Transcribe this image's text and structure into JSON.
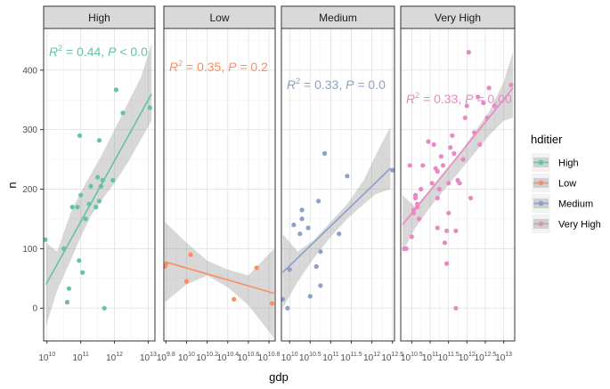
{
  "chart_data": {
    "type": "scatter",
    "xlabel": "gdp",
    "ylabel": "n",
    "legend": {
      "title": "hditier",
      "placement": "right",
      "entries": [
        {
          "name": "High",
          "color": "#66C2A5"
        },
        {
          "name": "Low",
          "color": "#FC8D62"
        },
        {
          "name": "Medium",
          "color": "#8DA0CB"
        },
        {
          "name": "Very High",
          "color": "#E78AC3"
        }
      ]
    },
    "ylim": [
      -55,
      470
    ],
    "y_ticks": [
      0,
      100,
      200,
      300,
      400
    ],
    "facets": [
      {
        "name": "High",
        "color": "#66C2A5",
        "xlim": [
          9.9,
          13.2
        ],
        "x_ticks": [
          10,
          11,
          12,
          13
        ],
        "annotation": {
          "r2": "0.44",
          "p": "< 0.0"
        },
        "fit": {
          "x": [
            9.97,
            13.1
          ],
          "y": [
            40,
            360
          ]
        },
        "band": [
          [
            9.97,
            -30
          ],
          [
            10.3,
            30
          ],
          [
            10.7,
            80
          ],
          [
            11.0,
            120
          ],
          [
            11.3,
            155
          ],
          [
            11.6,
            180
          ],
          [
            12.0,
            210
          ],
          [
            12.4,
            245
          ],
          [
            12.8,
            285
          ],
          [
            13.1,
            315
          ],
          [
            13.1,
            445
          ],
          [
            12.8,
            390
          ],
          [
            12.4,
            345
          ],
          [
            12.0,
            300
          ],
          [
            11.6,
            255
          ],
          [
            11.3,
            225
          ],
          [
            11.0,
            195
          ],
          [
            10.7,
            160
          ],
          [
            10.3,
            95
          ],
          [
            9.97,
            110
          ]
        ],
        "points": [
          [
            9.95,
            115
          ],
          [
            10.5,
            100
          ],
          [
            10.6,
            10
          ],
          [
            10.65,
            33
          ],
          [
            10.75,
            170
          ],
          [
            10.9,
            170
          ],
          [
            10.95,
            80
          ],
          [
            10.97,
            290
          ],
          [
            11.0,
            190
          ],
          [
            11.05,
            60
          ],
          [
            11.15,
            150
          ],
          [
            11.25,
            175
          ],
          [
            11.3,
            205
          ],
          [
            11.45,
            170
          ],
          [
            11.5,
            220
          ],
          [
            11.55,
            180
          ],
          [
            11.55,
            282
          ],
          [
            11.6,
            205
          ],
          [
            11.65,
            215
          ],
          [
            11.7,
            0
          ],
          [
            11.95,
            215
          ],
          [
            12.05,
            367
          ],
          [
            12.25,
            328
          ],
          [
            13.05,
            337
          ]
        ]
      },
      {
        "name": "Low",
        "color": "#FC8D62",
        "xlim": [
          9.78,
          10.86
        ],
        "x_ticks": [
          9.8,
          10,
          10.2,
          10.4,
          10.6,
          10.8
        ],
        "x_tick_labels": [
          "9.8",
          "10",
          "10.2",
          "10.4",
          "10.6",
          "10.8"
        ],
        "annotation": {
          "r2": "0.35",
          "p": "0.2"
        },
        "fit": {
          "x": [
            9.79,
            10.85
          ],
          "y": [
            78,
            25
          ]
        },
        "band": [
          [
            9.79,
            10
          ],
          [
            10.0,
            40
          ],
          [
            10.2,
            55
          ],
          [
            10.4,
            35
          ],
          [
            10.6,
            5
          ],
          [
            10.85,
            -50
          ],
          [
            10.85,
            100
          ],
          [
            10.6,
            55
          ],
          [
            10.4,
            65
          ],
          [
            10.2,
            80
          ],
          [
            10.0,
            110
          ],
          [
            9.79,
            145
          ]
        ],
        "points": [
          [
            9.79,
            70
          ],
          [
            9.8,
            73
          ],
          [
            10.0,
            45
          ],
          [
            10.04,
            90
          ],
          [
            10.46,
            15
          ],
          [
            10.68,
            68
          ],
          [
            10.83,
            8
          ]
        ]
      },
      {
        "name": "Medium",
        "color": "#8DA0CB",
        "xlim": [
          9.8,
          12.55
        ],
        "x_ticks": [
          10,
          10.5,
          11,
          11.5,
          12,
          12.5
        ],
        "x_tick_labels": [
          "10",
          "10.5",
          "11",
          "11.5",
          "12",
          "12.5"
        ],
        "annotation": {
          "r2": "0.33",
          "p": "0.0"
        },
        "fit": {
          "x": [
            9.83,
            12.45
          ],
          "y": [
            60,
            235
          ]
        },
        "band": [
          [
            9.83,
            0
          ],
          [
            10.2,
            45
          ],
          [
            10.6,
            85
          ],
          [
            11.0,
            120
          ],
          [
            11.4,
            150
          ],
          [
            11.8,
            175
          ],
          [
            12.1,
            192
          ],
          [
            12.45,
            200
          ],
          [
            12.45,
            305
          ],
          [
            12.1,
            258
          ],
          [
            11.8,
            215
          ],
          [
            11.4,
            175
          ],
          [
            11.0,
            145
          ],
          [
            10.6,
            115
          ],
          [
            10.2,
            95
          ],
          [
            9.83,
            125
          ]
        ],
        "points": [
          [
            9.83,
            15
          ],
          [
            9.95,
            0
          ],
          [
            10.0,
            65
          ],
          [
            10.1,
            140
          ],
          [
            10.25,
            125
          ],
          [
            10.3,
            150
          ],
          [
            10.3,
            165
          ],
          [
            10.45,
            135
          ],
          [
            10.5,
            20
          ],
          [
            10.65,
            70
          ],
          [
            10.7,
            180
          ],
          [
            10.75,
            95
          ],
          [
            10.75,
            38
          ],
          [
            10.85,
            260
          ],
          [
            11.2,
            125
          ],
          [
            11.4,
            222
          ],
          [
            12.5,
            232
          ]
        ]
      },
      {
        "name": "Very High",
        "color": "#E78AC3",
        "xlim": [
          10.2,
          13.3
        ],
        "x_ticks": [
          10.5,
          11,
          11.5,
          12,
          12.5,
          13
        ],
        "x_tick_labels": [
          "10.5",
          "11",
          "11.5",
          "12",
          "12.5",
          "13"
        ],
        "annotation": {
          "r2": "0.33",
          "p": "0.00"
        },
        "fit": {
          "x": [
            10.25,
            13.25
          ],
          "y": [
            140,
            370
          ]
        },
        "band": [
          [
            10.25,
            95
          ],
          [
            10.6,
            135
          ],
          [
            11.0,
            170
          ],
          [
            11.4,
            200
          ],
          [
            11.8,
            230
          ],
          [
            12.2,
            260
          ],
          [
            12.6,
            290
          ],
          [
            13.0,
            315
          ],
          [
            13.25,
            320
          ],
          [
            13.25,
            430
          ],
          [
            13.0,
            380
          ],
          [
            12.6,
            330
          ],
          [
            12.2,
            295
          ],
          [
            11.8,
            260
          ],
          [
            11.4,
            230
          ],
          [
            11.0,
            200
          ],
          [
            10.6,
            170
          ],
          [
            10.25,
            190
          ]
        ],
        "points": [
          [
            10.3,
            100
          ],
          [
            10.35,
            100
          ],
          [
            10.45,
            240
          ],
          [
            10.5,
            120
          ],
          [
            10.55,
            160
          ],
          [
            10.55,
            165
          ],
          [
            10.6,
            190
          ],
          [
            10.6,
            185
          ],
          [
            10.65,
            175
          ],
          [
            10.65,
            170
          ],
          [
            10.7,
            150
          ],
          [
            10.75,
            200
          ],
          [
            10.8,
            240
          ],
          [
            10.95,
            280
          ],
          [
            11.05,
            210
          ],
          [
            11.1,
            275
          ],
          [
            11.15,
            235
          ],
          [
            11.2,
            230
          ],
          [
            11.2,
            185
          ],
          [
            11.2,
            135
          ],
          [
            11.25,
            200
          ],
          [
            11.3,
            255
          ],
          [
            11.35,
            240
          ],
          [
            11.4,
            110
          ],
          [
            11.45,
            130
          ],
          [
            11.45,
            75
          ],
          [
            11.5,
            210
          ],
          [
            11.5,
            160
          ],
          [
            11.55,
            270
          ],
          [
            11.6,
            290
          ],
          [
            11.65,
            260
          ],
          [
            11.7,
            130
          ],
          [
            11.7,
            0
          ],
          [
            11.75,
            215
          ],
          [
            11.8,
            210
          ],
          [
            11.9,
            250
          ],
          [
            11.95,
            320
          ],
          [
            12.0,
            340
          ],
          [
            12.05,
            430
          ],
          [
            12.1,
            185
          ],
          [
            12.2,
            295
          ],
          [
            12.3,
            355
          ],
          [
            12.35,
            275
          ],
          [
            12.45,
            345
          ],
          [
            12.55,
            320
          ],
          [
            12.6,
            370
          ],
          [
            12.75,
            340
          ],
          [
            13.2,
            375
          ]
        ]
      }
    ]
  }
}
